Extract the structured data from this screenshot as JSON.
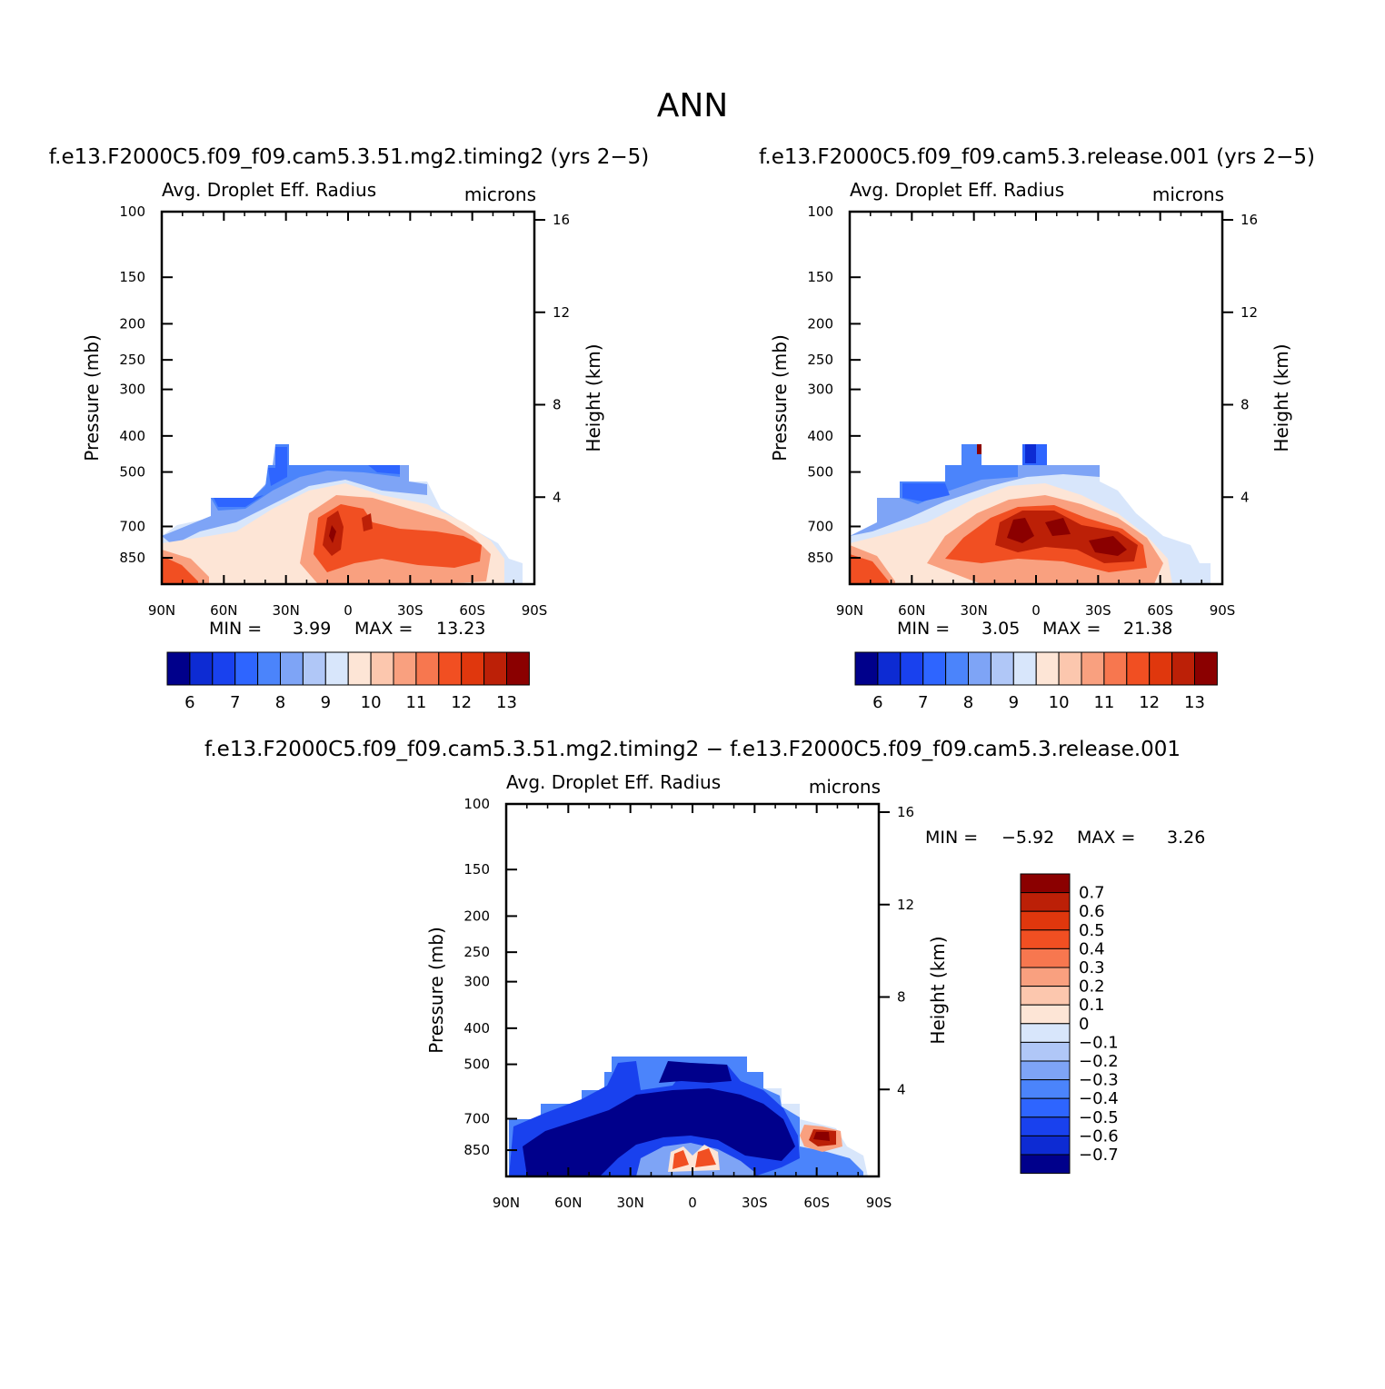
{
  "figure": {
    "title": "ANN",
    "colors": {
      "abs_palette": [
        "#00008b",
        "#0d2bd3",
        "#1941ee",
        "#2e65ff",
        "#4b84fb",
        "#7ea4f6",
        "#b0c7f7",
        "#d8e6fb",
        "#fde5d6",
        "#fcc7ae",
        "#f9a07f",
        "#f7774f",
        "#f14f22",
        "#e0370d",
        "#bc2007",
        "#8b0000"
      ],
      "diff_palette": [
        "#00008b",
        "#0d2bd3",
        "#1941ee",
        "#2e65ff",
        "#4b84fb",
        "#7ea4f6",
        "#b0c7f7",
        "#d8e6fb",
        "#fde5d6",
        "#fcc7ae",
        "#f9a07f",
        "#f7774f",
        "#f14f22",
        "#e0370d",
        "#bc2007",
        "#8b0000"
      ]
    }
  },
  "chart_data": [
    {
      "type": "contour",
      "case_title": "f.e13.F2000C5.f09_f09.cam5.3.51.mg2.timing2 (yrs 2−5)",
      "title": "Avg. Droplet Eff. Radius",
      "units": "microns",
      "ylabel": "Pressure (mb)",
      "ylabel_right": "Height (km)",
      "x_ticks": [
        "90N",
        "60N",
        "30N",
        "0",
        "30S",
        "60S",
        "90S"
      ],
      "y_ticks": [
        "100",
        "150",
        "200",
        "250",
        "300",
        "400",
        "500",
        "700",
        "850"
      ],
      "y_ticks_right": [
        "16",
        "12",
        "8",
        "4"
      ],
      "min_label": "MIN =",
      "min_value": "3.99",
      "max_label": "MAX =",
      "max_value": "13.23",
      "colorbar_labels": [
        "6",
        "7",
        "8",
        "9",
        "10",
        "11",
        "12",
        "13"
      ],
      "pressure_range_mb": [
        100,
        1000
      ],
      "lat_range": [
        "90N",
        "90S"
      ]
    },
    {
      "type": "contour",
      "case_title": "f.e13.F2000C5.f09_f09.cam5.3.release.001 (yrs 2−5)",
      "title": "Avg. Droplet Eff. Radius",
      "units": "microns",
      "ylabel": "Pressure (mb)",
      "ylabel_right": "Height (km)",
      "x_ticks": [
        "90N",
        "60N",
        "30N",
        "0",
        "30S",
        "60S",
        "90S"
      ],
      "y_ticks": [
        "100",
        "150",
        "200",
        "250",
        "300",
        "400",
        "500",
        "700",
        "850"
      ],
      "y_ticks_right": [
        "16",
        "12",
        "8",
        "4"
      ],
      "min_label": "MIN =",
      "min_value": "3.05",
      "max_label": "MAX =",
      "max_value": "21.38",
      "colorbar_labels": [
        "6",
        "7",
        "8",
        "9",
        "10",
        "11",
        "12",
        "13"
      ],
      "pressure_range_mb": [
        100,
        1000
      ],
      "lat_range": [
        "90N",
        "90S"
      ]
    },
    {
      "type": "contour",
      "case_title": "f.e13.F2000C5.f09_f09.cam5.3.51.mg2.timing2 − f.e13.F2000C5.f09_f09.cam5.3.release.001",
      "title": "Avg. Droplet Eff. Radius",
      "units": "microns",
      "ylabel": "Pressure (mb)",
      "ylabel_right": "Height (km)",
      "x_ticks": [
        "90N",
        "60N",
        "30N",
        "0",
        "30S",
        "60S",
        "90S"
      ],
      "y_ticks": [
        "100",
        "150",
        "200",
        "250",
        "300",
        "400",
        "500",
        "700",
        "850"
      ],
      "y_ticks_right": [
        "16",
        "12",
        "8",
        "4"
      ],
      "min_label": "MIN =",
      "min_value": "−5.92",
      "max_label": "MAX =",
      "max_value": "3.26",
      "colorbar_labels": [
        "0.7",
        "0.6",
        "0.5",
        "0.4",
        "0.3",
        "0.2",
        "0.1",
        "0",
        "−0.1",
        "−0.2",
        "−0.3",
        "−0.4",
        "−0.5",
        "−0.6",
        "−0.7"
      ],
      "pressure_range_mb": [
        100,
        1000
      ],
      "lat_range": [
        "90N",
        "90S"
      ]
    }
  ]
}
